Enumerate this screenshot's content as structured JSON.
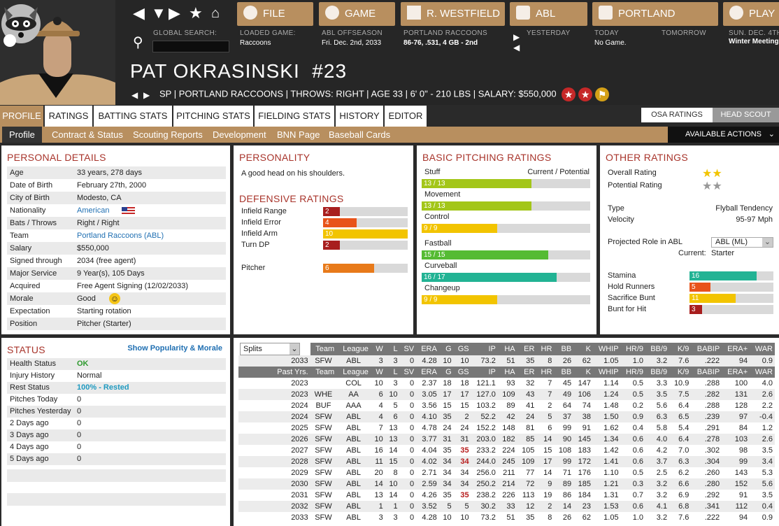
{
  "nav": {
    "file": "FILE",
    "game": "GAME",
    "manager": "R. WESTFIELD",
    "league": "ABL",
    "team": "PORTLAND",
    "play": "PLAY"
  },
  "search": {
    "label": "GLOBAL SEARCH:"
  },
  "status_bar": {
    "loaded_label": "LOADED GAME:",
    "loaded_value": "Raccoons",
    "phase_label": "ABL OFFSEASON",
    "phase_value": "Fri. Dec. 2nd, 2033",
    "team_label": "PORTLAND RACCOONS",
    "team_value": "86-76, .531, 4 GB - 2nd",
    "yesterday": "YESTERDAY",
    "today_label": "TODAY",
    "today_value": "No Game.",
    "tomorrow": "TOMORROW",
    "sunday_label": "SUN. DEC. 4TH",
    "sunday_value": "Winter Meetings"
  },
  "player": {
    "name": "PAT OKRASINSKI",
    "number": "#23",
    "info": "SP | PORTLAND RACCOONS  |  THROWS: RIGHT  |  AGE 33  |  6' 0\" - 210 LBS  |  SALARY: $550,000"
  },
  "tabs": [
    "PROFILE",
    "RATINGS",
    "BATTING STATS",
    "PITCHING STATS",
    "FIELDING STATS",
    "HISTORY",
    "EDITOR"
  ],
  "subtabs": [
    "Profile",
    "Contract & Status",
    "Scouting Reports",
    "Development",
    "BNN Page",
    "Baseball Cards"
  ],
  "rating_toggle": {
    "osa": "OSA RATINGS",
    "head_scout": "HEAD SCOUT"
  },
  "actions": "AVAILABLE ACTIONS",
  "personal": {
    "title": "PERSONAL DETAILS",
    "rows": [
      {
        "k": "Age",
        "v": "33 years, 278 days"
      },
      {
        "k": "Date of Birth",
        "v": "February 27th, 2000"
      },
      {
        "k": "City of Birth",
        "v": "Modesto, CA"
      },
      {
        "k": "Nationality",
        "v": "American"
      },
      {
        "k": "Bats / Throws",
        "v": "Right / Right"
      },
      {
        "k": "Team",
        "v": "Portland Raccoons (ABL)"
      },
      {
        "k": "Salary",
        "v": "$550,000"
      },
      {
        "k": "Signed through",
        "v": "2034 (free agent)"
      },
      {
        "k": "Major Service",
        "v": "9 Year(s), 105 Days"
      },
      {
        "k": "Acquired",
        "v": "Free Agent Signing (12/02/2033)"
      },
      {
        "k": "Morale",
        "v": "Good"
      },
      {
        "k": "Expectation",
        "v": "Starting rotation"
      },
      {
        "k": "Position",
        "v": "Pitcher (Starter)"
      }
    ]
  },
  "personality": {
    "title": "PERSONALITY",
    "text": "A good head on his shoulders."
  },
  "defense": {
    "title": "DEFENSIVE RATINGS",
    "rows": [
      {
        "k": "Infield Range",
        "v": "2",
        "level": 0.2,
        "color": "#a81e1e"
      },
      {
        "k": "Infield Error",
        "v": "4",
        "level": 0.4,
        "color": "#e8531a"
      },
      {
        "k": "Infield Arm",
        "v": "10",
        "level": 1.0,
        "color": "#f2c400"
      },
      {
        "k": "Turn DP",
        "v": "2",
        "level": 0.2,
        "color": "#a81e1e"
      },
      {
        "k": "Pitcher",
        "v": "6",
        "level": 0.6,
        "color": "#e87a1a"
      }
    ]
  },
  "pitching": {
    "title": "BASIC PITCHING RATINGS",
    "header_left": "Stuff",
    "header_right": "Current / Potential",
    "rows": [
      {
        "k": "Stuff",
        "v": "13 / 13",
        "level": 0.65,
        "color": "#a3c619"
      },
      {
        "k": "Movement",
        "v": "13 / 13",
        "level": 0.65,
        "color": "#a3c619"
      },
      {
        "k": "Control",
        "v": "9 / 9",
        "level": 0.45,
        "color": "#f2c400"
      },
      {
        "k": "Fastball",
        "v": "15 / 15",
        "level": 0.75,
        "color": "#55bb33"
      },
      {
        "k": "Curveball",
        "v": "16 / 17",
        "level": 0.8,
        "color": "#22b394"
      },
      {
        "k": "Changeup",
        "v": "9 / 9",
        "level": 0.45,
        "color": "#f2c400"
      }
    ]
  },
  "other": {
    "title": "OTHER RATINGS",
    "overall_label": "Overall Rating",
    "potential_label": "Potential Rating",
    "type_label": "Type",
    "type_value": "Flyball Tendency",
    "velocity_label": "Velocity",
    "velocity_value": "95-97 Mph",
    "role_label": "Projected Role in ABL",
    "role_select": "ABL (ML)",
    "current_label": "Current:",
    "current_value": "Starter",
    "rows": [
      {
        "k": "Stamina",
        "v": "16",
        "level": 0.8,
        "color": "#22b394"
      },
      {
        "k": "Hold Runners",
        "v": "5",
        "level": 0.25,
        "color": "#e8531a"
      },
      {
        "k": "Sacrifice Bunt",
        "v": "11",
        "level": 0.55,
        "color": "#f2c400"
      },
      {
        "k": "Bunt for Hit",
        "v": "3",
        "level": 0.15,
        "color": "#a81e1e"
      }
    ]
  },
  "status": {
    "title": "STATUS",
    "link": "Show Popularity & Morale",
    "rows": [
      {
        "k": "Health Status",
        "v": "OK"
      },
      {
        "k": "Injury History",
        "v": "Normal"
      },
      {
        "k": "Rest Status",
        "v": "100% - Rested"
      },
      {
        "k": "Pitches Today",
        "v": "0"
      },
      {
        "k": "Pitches Yesterday",
        "v": "0"
      },
      {
        "k": "2 Days ago",
        "v": "0"
      },
      {
        "k": "3 Days ago",
        "v": "0"
      },
      {
        "k": "4 Days ago",
        "v": "0"
      },
      {
        "k": "5 Days ago",
        "v": "0"
      }
    ]
  },
  "stats": {
    "splits": "Splits",
    "columns": [
      "Team",
      "League",
      "W",
      "L",
      "SV",
      "ERA",
      "G",
      "GS",
      "IP",
      "HA",
      "ER",
      "HR",
      "BB",
      "K",
      "WHIP",
      "HR/9",
      "BB/9",
      "K/9",
      "BABIP",
      "ERA+",
      "WAR"
    ],
    "current": [
      "2033",
      "SFW",
      "ABL",
      "3",
      "3",
      "0",
      "4.28",
      "10",
      "10",
      "73.2",
      "51",
      "35",
      "8",
      "26",
      "62",
      "1.05",
      "1.0",
      "3.2",
      "7.6",
      ".222",
      "94",
      "0.9"
    ],
    "past_label": "Past Yrs.",
    "rows": [
      [
        "2023",
        "",
        "COL",
        "10",
        "3",
        "0",
        "2.37",
        "18",
        "18",
        "121.1",
        "93",
        "32",
        "7",
        "45",
        "147",
        "1.14",
        "0.5",
        "3.3",
        "10.9",
        ".288",
        "100",
        "4.0"
      ],
      [
        "2023",
        "WHE",
        "AA",
        "6",
        "10",
        "0",
        "3.05",
        "17",
        "17",
        "127.0",
        "109",
        "43",
        "7",
        "49",
        "106",
        "1.24",
        "0.5",
        "3.5",
        "7.5",
        ".282",
        "131",
        "2.6"
      ],
      [
        "2024",
        "BUF",
        "AAA",
        "4",
        "5",
        "0",
        "3.56",
        "15",
        "15",
        "103.2",
        "89",
        "41",
        "2",
        "64",
        "74",
        "1.48",
        "0.2",
        "5.6",
        "6.4",
        ".288",
        "128",
        "2.2"
      ],
      [
        "2024",
        "SFW",
        "ABL",
        "4",
        "6",
        "0",
        "4.10",
        "35",
        "2",
        "52.2",
        "42",
        "24",
        "5",
        "37",
        "38",
        "1.50",
        "0.9",
        "6.3",
        "6.5",
        ".239",
        "97",
        "-0.4"
      ],
      [
        "2025",
        "SFW",
        "ABL",
        "7",
        "13",
        "0",
        "4.78",
        "24",
        "24",
        "152.2",
        "148",
        "81",
        "6",
        "99",
        "91",
        "1.62",
        "0.4",
        "5.8",
        "5.4",
        ".291",
        "84",
        "1.2"
      ],
      [
        "2026",
        "SFW",
        "ABL",
        "10",
        "13",
        "0",
        "3.77",
        "31",
        "31",
        "203.0",
        "182",
        "85",
        "14",
        "90",
        "145",
        "1.34",
        "0.6",
        "4.0",
        "6.4",
        ".278",
        "103",
        "2.6"
      ],
      [
        "2027",
        "SFW",
        "ABL",
        "16",
        "14",
        "0",
        "4.04",
        "35",
        "35",
        "233.2",
        "224",
        "105",
        "15",
        "108",
        "183",
        "1.42",
        "0.6",
        "4.2",
        "7.0",
        ".302",
        "98",
        "3.5"
      ],
      [
        "2028",
        "SFW",
        "ABL",
        "11",
        "15",
        "0",
        "4.02",
        "34",
        "34",
        "244.0",
        "245",
        "109",
        "17",
        "99",
        "172",
        "1.41",
        "0.6",
        "3.7",
        "6.3",
        ".304",
        "99",
        "3.4"
      ],
      [
        "2029",
        "SFW",
        "ABL",
        "20",
        "8",
        "0",
        "2.71",
        "34",
        "34",
        "256.0",
        "211",
        "77",
        "14",
        "71",
        "176",
        "1.10",
        "0.5",
        "2.5",
        "6.2",
        ".260",
        "143",
        "5.3"
      ],
      [
        "2030",
        "SFW",
        "ABL",
        "14",
        "10",
        "0",
        "2.59",
        "34",
        "34",
        "250.2",
        "214",
        "72",
        "9",
        "89",
        "185",
        "1.21",
        "0.3",
        "3.2",
        "6.6",
        ".280",
        "152",
        "5.6"
      ],
      [
        "2031",
        "SFW",
        "ABL",
        "13",
        "14",
        "0",
        "4.26",
        "35",
        "35",
        "238.2",
        "226",
        "113",
        "19",
        "86",
        "184",
        "1.31",
        "0.7",
        "3.2",
        "6.9",
        ".292",
        "91",
        "3.5"
      ],
      [
        "2032",
        "SFW",
        "ABL",
        "1",
        "1",
        "0",
        "3.52",
        "5",
        "5",
        "30.2",
        "33",
        "12",
        "2",
        "14",
        "23",
        "1.53",
        "0.6",
        "4.1",
        "6.8",
        ".341",
        "112",
        "0.4"
      ],
      [
        "2033",
        "SFW",
        "ABL",
        "3",
        "3",
        "0",
        "4.28",
        "10",
        "10",
        "73.2",
        "51",
        "35",
        "8",
        "26",
        "62",
        "1.05",
        "1.0",
        "3.2",
        "7.6",
        ".222",
        "94",
        "0.9"
      ]
    ],
    "highlight_gs_rows": [
      6,
      7,
      10
    ]
  }
}
